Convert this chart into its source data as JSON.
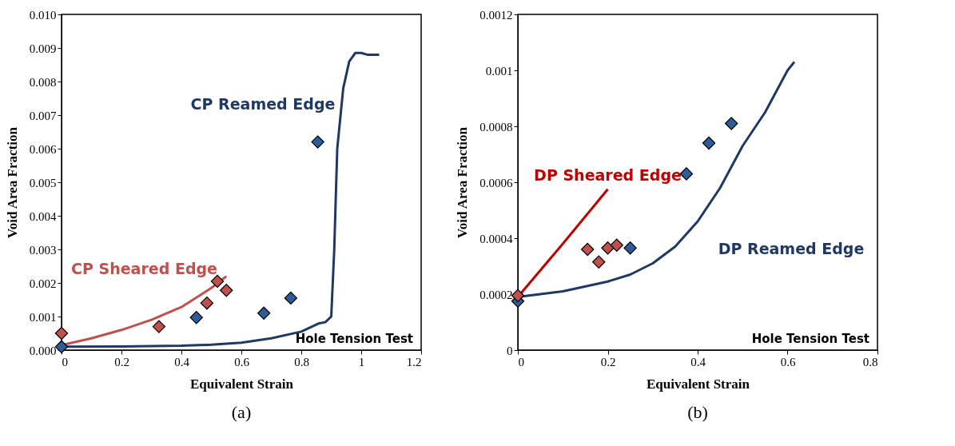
{
  "chart_data": [
    {
      "type": "line",
      "xlabel": "Equivalent Strain",
      "ylabel": "Void Area Fraction",
      "xlim": [
        0,
        1.2
      ],
      "xticks": [
        0,
        0.2,
        0.4,
        0.6,
        0.8,
        1,
        1.2
      ],
      "ylim": [
        0,
        0.01
      ],
      "yticks": [
        {
          "value": 0,
          "label": "0.000"
        },
        {
          "value": 0.001,
          "label": "0.001"
        },
        {
          "value": 0.002,
          "label": "0.002"
        },
        {
          "value": 0.003,
          "label": "0.003"
        },
        {
          "value": 0.004,
          "label": "0.004"
        },
        {
          "value": 0.005,
          "label": "0.005"
        },
        {
          "value": 0.006,
          "label": "0.006"
        },
        {
          "value": 0.007,
          "label": "0.007"
        },
        {
          "value": 0.008,
          "label": "0.008"
        },
        {
          "value": 0.009,
          "label": "0.009"
        },
        {
          "value": 0.01,
          "label": "0.010"
        }
      ],
      "grid": false,
      "line_style": "solid",
      "annotations": [
        "Hole Tension Test",
        "(a)"
      ],
      "series": [
        {
          "name": "CP Reamed Edge",
          "color": "#1f3864",
          "x": [
            0,
            0.2,
            0.4,
            0.5,
            0.6,
            0.7,
            0.8,
            0.86,
            0.88,
            0.9,
            0.91,
            0.92,
            0.94,
            0.96,
            0.98,
            1.0,
            1.02,
            1.06
          ],
          "values": [
            0.0001,
            0.00011,
            0.00013,
            0.00016,
            0.00022,
            0.00035,
            0.00055,
            0.0008,
            0.00083,
            0.001,
            0.003,
            0.006,
            0.0078,
            0.0086,
            0.00885,
            0.00885,
            0.0088,
            0.0088
          ]
        },
        {
          "name": "CP Sheared Edge",
          "color": "#c0504d",
          "x": [
            0,
            0.1,
            0.2,
            0.3,
            0.4,
            0.5,
            0.55
          ],
          "values": [
            0.00015,
            0.00035,
            0.0006,
            0.0009,
            0.00128,
            0.00185,
            0.0022
          ]
        },
        {
          "type": "scatter",
          "color": "#c0504d",
          "marker": "diamond",
          "x": [
            0,
            0.325,
            0.485,
            0.52,
            0.55
          ],
          "values": [
            0.0005,
            0.0007,
            0.0014,
            0.00205,
            0.00178
          ]
        },
        {
          "type": "scatter",
          "color": "#2e5c99",
          "marker": "diamond",
          "x": [
            0,
            0.45,
            0.675,
            0.765,
            0.855
          ],
          "values": [
            0.0001,
            0.00097,
            0.0011,
            0.00155,
            0.0062
          ]
        }
      ]
    },
    {
      "type": "line",
      "xlabel": "Equivalent Strain",
      "ylabel": "Void Area Fraction",
      "xlim": [
        0,
        0.8
      ],
      "xticks": [
        0,
        0.2,
        0.4,
        0.6,
        0.8
      ],
      "ylim": [
        0,
        0.0012
      ],
      "yticks": [
        0,
        0.0002,
        0.0004,
        0.0006,
        0.0008,
        0.001,
        0.0012
      ],
      "grid": false,
      "line_style": "solid",
      "annotations": [
        "Hole Tension Test",
        "(b)"
      ],
      "series": [
        {
          "name": "DP Reamed Edge",
          "color": "#1f3864",
          "x": [
            0,
            0.1,
            0.2,
            0.25,
            0.3,
            0.35,
            0.4,
            0.45,
            0.5,
            0.55,
            0.6,
            0.615
          ],
          "values": [
            0.00019,
            0.00021,
            0.000245,
            0.00027,
            0.00031,
            0.00037,
            0.00046,
            0.00058,
            0.00073,
            0.00085,
            0.001,
            0.00103
          ]
        },
        {
          "name": "DP Sheared Edge",
          "color": "#c00000",
          "x": [
            0,
            0.1,
            0.2
          ],
          "values": [
            0.00019,
            0.00038,
            0.000575
          ]
        },
        {
          "type": "scatter",
          "color": "#2e5c99",
          "marker": "diamond",
          "x": [
            0,
            0.25,
            0.375,
            0.425,
            0.475
          ],
          "values": [
            0.000175,
            0.000365,
            0.00063,
            0.00074,
            0.00081
          ]
        },
        {
          "type": "scatter",
          "color": "#c0504d",
          "marker": "diamond",
          "x": [
            0,
            0.155,
            0.18,
            0.2,
            0.22
          ],
          "values": [
            0.000195,
            0.00036,
            0.000315,
            0.000365,
            0.000375
          ]
        }
      ]
    }
  ]
}
